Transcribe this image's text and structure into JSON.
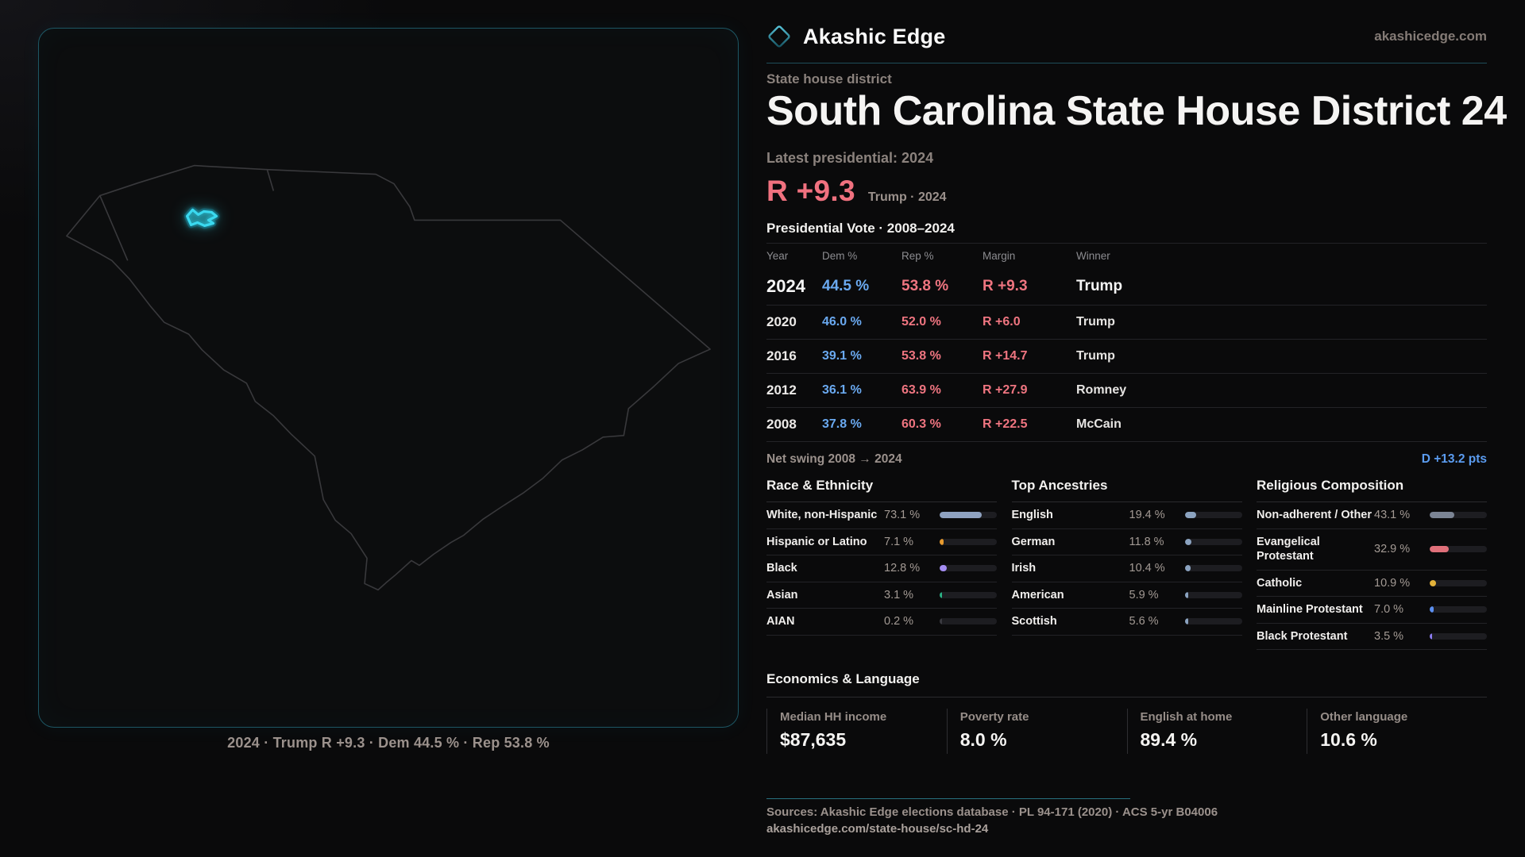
{
  "brand": {
    "name": "Akashic Edge",
    "site": "akashicedge.com"
  },
  "header": {
    "kicker": "State house district",
    "title": "South Carolina State House District 24"
  },
  "latest": {
    "label": "Latest presidential: 2024",
    "margin": "R +9.3",
    "sub": "Trump · 2024"
  },
  "map": {
    "caption": "2024 · Trump  R +9.3 · Dem 44.5 % · Rep 53.8 %"
  },
  "vote_table": {
    "title": "Presidential Vote · 2008–2024",
    "columns": [
      "Year",
      "Dem %",
      "Rep %",
      "Margin",
      "Winner"
    ],
    "rows": [
      {
        "year": "2024",
        "dem": "44.5 %",
        "rep": "53.8 %",
        "margin": "R +9.3",
        "winner": "Trump",
        "emphasis": true
      },
      {
        "year": "2020",
        "dem": "46.0 %",
        "rep": "52.0 %",
        "margin": "R +6.0",
        "winner": "Trump",
        "emphasis": false
      },
      {
        "year": "2016",
        "dem": "39.1 %",
        "rep": "53.8 %",
        "margin": "R +14.7",
        "winner": "Trump",
        "emphasis": false
      },
      {
        "year": "2012",
        "dem": "36.1 %",
        "rep": "63.9 %",
        "margin": "R +27.9",
        "winner": "Romney",
        "emphasis": false
      },
      {
        "year": "2008",
        "dem": "37.8 %",
        "rep": "60.3 %",
        "margin": "R +22.5",
        "winner": "McCain",
        "emphasis": false
      }
    ]
  },
  "net_swing": {
    "label": "Net swing 2008 → 2024",
    "value": "D +13.2 pts"
  },
  "sections": [
    {
      "title": "Race & Ethnicity",
      "rows": [
        {
          "label": "White, non-Hispanic",
          "value": "73.1 %",
          "pct": 73.1,
          "color": "#8fa2c0"
        },
        {
          "label": "Hispanic or Latino",
          "value": "7.1 %",
          "pct": 7.1,
          "color": "#e79a2e"
        },
        {
          "label": "Black",
          "value": "12.8 %",
          "pct": 12.8,
          "color": "#a48df2"
        },
        {
          "label": "Asian",
          "value": "3.1 %",
          "pct": 3.1,
          "color": "#2bb184"
        },
        {
          "label": "AIAN",
          "value": "0.2 %",
          "pct": 0.2,
          "color": "#3a3a40"
        }
      ]
    },
    {
      "title": "Top Ancestries",
      "rows": [
        {
          "label": "English",
          "value": "19.4 %",
          "pct": 19.4,
          "color": "#8ba3c0"
        },
        {
          "label": "German",
          "value": "11.8 %",
          "pct": 11.8,
          "color": "#8ba3c0"
        },
        {
          "label": "Irish",
          "value": "10.4 %",
          "pct": 10.4,
          "color": "#8ba3c0"
        },
        {
          "label": "American",
          "value": "5.9 %",
          "pct": 5.9,
          "color": "#8ba3c0"
        },
        {
          "label": "Scottish",
          "value": "5.6 %",
          "pct": 5.6,
          "color": "#8ba3c0"
        }
      ]
    },
    {
      "title": "Religious Composition",
      "rows": [
        {
          "label": "Non-adherent / Other",
          "value": "43.1 %",
          "pct": 43.1,
          "color": "#7b8494"
        },
        {
          "label": "Evangelical Protestant",
          "value": "32.9 %",
          "pct": 32.9,
          "color": "#e0707a"
        },
        {
          "label": "Catholic",
          "value": "10.9 %",
          "pct": 10.9,
          "color": "#e3b23a"
        },
        {
          "label": "Mainline Protestant",
          "value": "7.0 %",
          "pct": 7.0,
          "color": "#5b8ff0"
        },
        {
          "label": "Black Protestant",
          "value": "3.5 %",
          "pct": 3.5,
          "color": "#8b7bf0"
        }
      ]
    }
  ],
  "economics": {
    "title": "Economics & Language",
    "stats": [
      {
        "label": "Median HH income",
        "value": "$87,635"
      },
      {
        "label": "Poverty rate",
        "value": "8.0 %"
      },
      {
        "label": "English at home",
        "value": "89.4 %"
      },
      {
        "label": "Other language",
        "value": "10.6 %"
      }
    ]
  },
  "footer": {
    "sources": "Sources: Akashic Edge elections database · PL 94-171 (2020) · ACS 5-yr B04006",
    "permalink": "akashicedge.com/state-house/sc-hd-24"
  },
  "colors": {
    "accent_cyan": "#3ad9ef",
    "dem_blue": "#6aa9f0",
    "rep_red": "#ef7580",
    "swing_blue": "#5b9cf0"
  }
}
